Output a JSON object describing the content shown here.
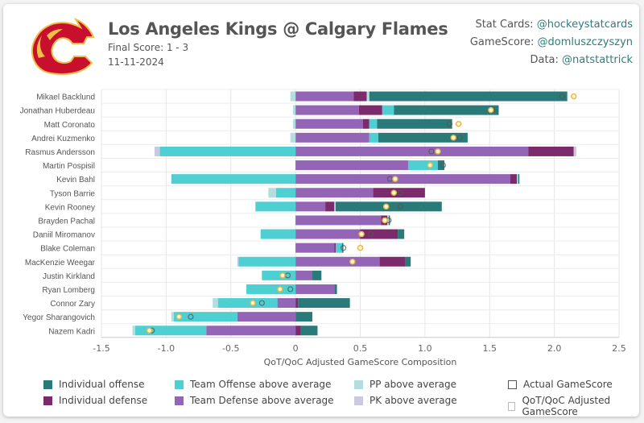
{
  "header": {
    "title": "Los Angeles Kings @ Calgary Flames",
    "final_score": "Final Score: 1 - 3",
    "date": "11-11-2024",
    "logo": "calgary-flames-logo"
  },
  "credits": [
    {
      "label": "Stat Cards: ",
      "handle": "@hockeystatcards"
    },
    {
      "label": "GameScore: ",
      "handle": "@domluszczyszyn"
    },
    {
      "label": "Data: ",
      "handle": "@natstattrick"
    }
  ],
  "colors": {
    "individual_offense": "#2b7a7a",
    "individual_defense": "#7b2a6b",
    "team_offense": "#4ecfd2",
    "team_defense": "#9464b6",
    "pp": "#b4dde0",
    "pk": "#c9c9e2",
    "actual": "#555555",
    "adjusted": "#e8b84a"
  },
  "chart_data": {
    "type": "bar",
    "orientation": "horizontal-stacked",
    "xlabel": "QoT/QoC Adjusted GameScore Composition",
    "xlim": [
      -1.5,
      2.5
    ],
    "xticks": [
      "-1.5",
      "-1.0",
      "-0.5",
      "0",
      "0.5",
      "1.0",
      "1.5",
      "2.0",
      "2.5"
    ],
    "grid": true,
    "legend": [
      {
        "key": "individual_offense",
        "label": "Individual offense",
        "kind": "box"
      },
      {
        "key": "team_offense",
        "label": "Team Offense above average",
        "kind": "box"
      },
      {
        "key": "pp",
        "label": "PP above average",
        "kind": "box"
      },
      {
        "key": "actual",
        "label": "Actual GameScore",
        "kind": "outline"
      },
      {
        "key": "individual_defense",
        "label": "Individual defense",
        "kind": "box"
      },
      {
        "key": "team_defense",
        "label": "Team Defense above average",
        "kind": "box"
      },
      {
        "key": "pk",
        "label": "PK above average",
        "kind": "box"
      },
      {
        "key": "adjusted",
        "label": "QoT/QoC Adjusted GameScore",
        "kind": "outline"
      }
    ],
    "players": [
      {
        "name": "Mikael Backlund",
        "neg": {
          "pp": -0.04
        },
        "pos": {
          "team_defense": 0.45,
          "individual_defense": 0.1,
          "pp": 0.02,
          "individual_offense": 1.53
        },
        "actual": 2.06,
        "adjusted": 2.15
      },
      {
        "name": "Jonathan Huberdeau",
        "neg": {
          "pp": -0.02
        },
        "pos": {
          "team_defense": 0.49,
          "individual_defense": 0.18,
          "team_offense": 0.09,
          "individual_offense": 0.81
        },
        "actual": 1.52,
        "adjusted": 1.51
      },
      {
        "name": "Matt Coronato",
        "neg": {
          "pp": -0.02
        },
        "pos": {
          "team_defense": 0.52,
          "individual_defense": 0.05,
          "team_offense": 0.06,
          "individual_offense": 0.58
        },
        "actual": 1.19,
        "adjusted": 1.26
      },
      {
        "name": "Andrei Kuzmenko",
        "neg": {
          "pp": -0.04
        },
        "pos": {
          "team_defense": 0.57,
          "team_offense": 0.07,
          "individual_offense": 0.69
        },
        "actual": 1.27,
        "adjusted": 1.22
      },
      {
        "name": "Rasmus Andersson",
        "neg": {
          "team_offense": -1.05,
          "pk": -0.04
        },
        "pos": {
          "team_defense": 1.8,
          "individual_defense": 0.35,
          "pk": 0.02
        },
        "actual": 1.05,
        "adjusted": 1.1
      },
      {
        "name": "Martin Pospisil",
        "neg": {},
        "pos": {
          "team_defense": 0.87,
          "team_offense": 0.23,
          "individual_offense": 0.05
        },
        "actual": 1.14,
        "adjusted": 1.04
      },
      {
        "name": "Kevin Bahl",
        "neg": {
          "team_offense": -0.96
        },
        "pos": {
          "team_defense": 1.66,
          "individual_defense": 0.05,
          "pp": 0.01,
          "individual_offense": 0.01
        },
        "actual": 0.73,
        "adjusted": 0.77
      },
      {
        "name": "Tyson Barrie",
        "neg": {
          "team_offense": -0.15,
          "pp": -0.06
        },
        "pos": {
          "team_defense": 0.6,
          "individual_defense": 0.4
        },
        "actual": 0.81,
        "adjusted": 0.76
      },
      {
        "name": "Kevin Rooney",
        "neg": {
          "team_offense": -0.31
        },
        "pos": {
          "team_defense": 0.23,
          "individual_defense": 0.07,
          "pp": 0.01,
          "individual_offense": 0.82
        },
        "actual": 0.81,
        "adjusted": 0.7
      },
      {
        "name": "Brayden Pachal",
        "neg": {},
        "pos": {
          "team_defense": 0.66,
          "individual_defense": 0.05,
          "pp": 0.01,
          "individual_offense": 0.01
        },
        "actual": 0.72,
        "adjusted": 0.69
      },
      {
        "name": "Daniil Miromanov",
        "neg": {
          "team_offense": -0.27
        },
        "pos": {
          "team_defense": 0.5,
          "individual_defense": 0.29,
          "individual_offense": 0.05
        },
        "actual": 0.58,
        "adjusted": 0.51
      },
      {
        "name": "Blake Coleman",
        "neg": {},
        "pos": {
          "team_defense": 0.3,
          "individual_defense": 0.01,
          "team_offense": 0.05,
          "individual_offense": 0.01
        },
        "actual": 0.37,
        "adjusted": 0.5
      },
      {
        "name": "MacKenzie Weegar",
        "neg": {
          "team_offense": -0.44,
          "pk": -0.01
        },
        "pos": {
          "team_defense": 0.65,
          "individual_defense": 0.2,
          "individual_offense": 0.04
        },
        "actual": 0.44,
        "adjusted": 0.44
      },
      {
        "name": "Justin Kirkland",
        "neg": {
          "team_offense": -0.26
        },
        "pos": {
          "team_defense": 0.13,
          "individual_offense": 0.07
        },
        "actual": -0.06,
        "adjusted": -0.1
      },
      {
        "name": "Ryan Lomberg",
        "neg": {
          "team_offense": -0.38
        },
        "pos": {
          "team_defense": 0.3,
          "individual_offense": 0.02
        },
        "actual": -0.04,
        "adjusted": -0.12
      },
      {
        "name": "Connor Zary",
        "neg": {
          "team_defense": -0.14,
          "team_offense": -0.46,
          "pp": -0.04
        },
        "pos": {
          "individual_defense": 0.02,
          "individual_offense": 0.4
        },
        "actual": -0.26,
        "adjusted": -0.33
      },
      {
        "name": "Yegor Sharangovich",
        "neg": {
          "team_defense": -0.45,
          "team_offense": -0.49,
          "pp": -0.02
        },
        "pos": {
          "individual_offense": 0.13
        },
        "actual": -0.81,
        "adjusted": -0.9
      },
      {
        "name": "Nazem Kadri",
        "neg": {
          "team_defense": -0.69,
          "team_offense": -0.55,
          "pp": -0.02
        },
        "pos": {
          "individual_defense": 0.04,
          "individual_offense": 0.13
        },
        "actual": -1.11,
        "adjusted": -1.13
      }
    ]
  }
}
